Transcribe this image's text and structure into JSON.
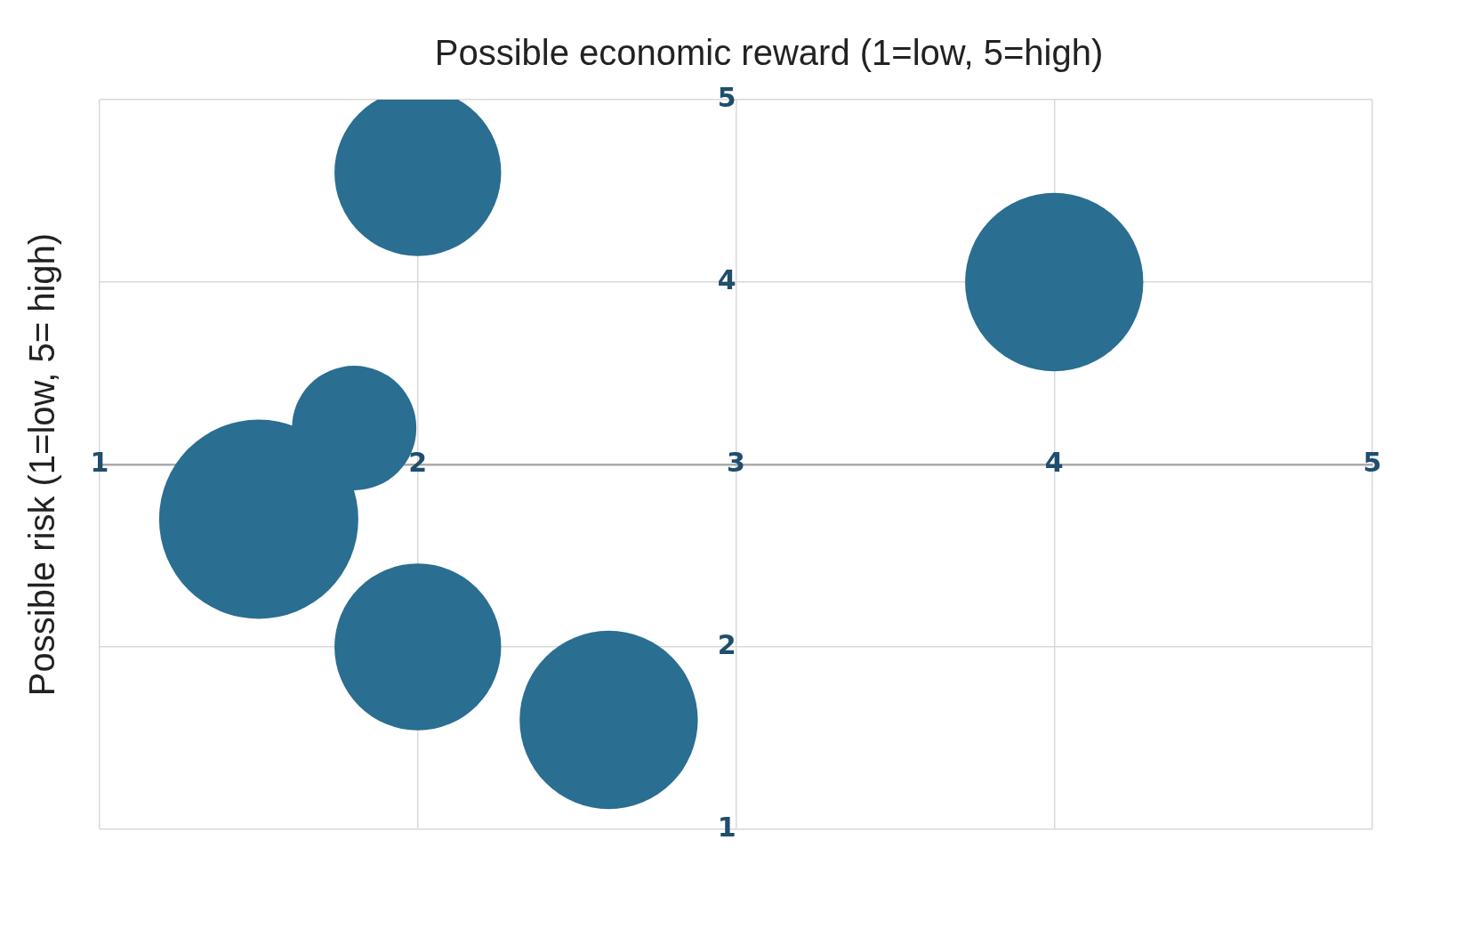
{
  "chart_data": {
    "type": "bubble",
    "xlabel": "Possible economic reward (1=low, 5=high)",
    "ylabel": "Possible risk (1=low, 5= high)",
    "x": [
      2.0,
      4.0,
      1.8,
      1.5,
      2.0,
      2.6
    ],
    "values": [
      4.6,
      4.0,
      3.2,
      2.7,
      2.0,
      1.6
    ],
    "sizes": [
      0.7,
      0.8,
      0.39,
      1,
      0.7,
      0.8
    ],
    "color": "#2a6e91",
    "xlim": [
      1,
      5
    ],
    "xticks": [
      1,
      2,
      3,
      4,
      5
    ],
    "ylim": [
      1,
      5
    ],
    "yticks": [
      1,
      2,
      {
        "value": 3,
        "label": null
      },
      4,
      5
    ],
    "grid": true
  }
}
